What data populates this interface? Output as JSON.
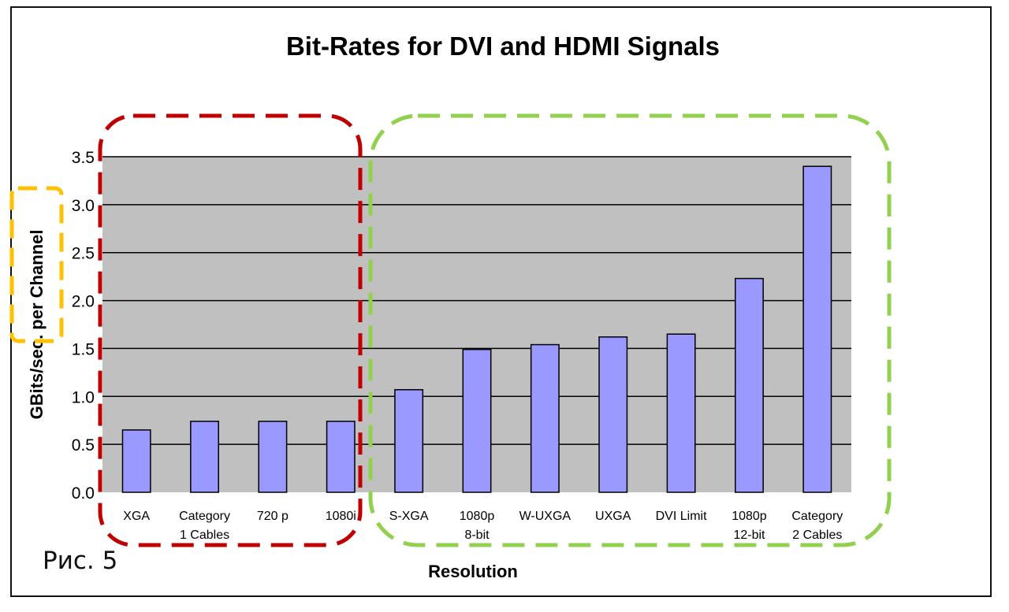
{
  "chart_data": {
    "type": "bar",
    "title": "Bit-Rates for DVI and HDMI Signals",
    "xlabel": "Resolution",
    "ylabel": "GBits/sec. per Channel",
    "ylim": [
      0,
      3.5
    ],
    "y_ticks": [
      "0.0",
      "0.5",
      "1.0",
      "1.5",
      "2.0",
      "2.5",
      "3.0",
      "3.5"
    ],
    "categories": [
      [
        "XGA"
      ],
      [
        "Category",
        "1 Cables"
      ],
      [
        "720 p"
      ],
      [
        "1080i"
      ],
      [
        "S-XGA"
      ],
      [
        "1080p",
        "8-bit"
      ],
      [
        "W-UXGA"
      ],
      [
        "UXGA"
      ],
      [
        "DVI Limit"
      ],
      [
        "1080p",
        "12-bit"
      ],
      [
        "Category",
        "2 Cables"
      ]
    ],
    "values": [
      0.65,
      0.74,
      0.74,
      0.74,
      1.07,
      1.49,
      1.54,
      1.62,
      1.65,
      2.23,
      3.4
    ],
    "grid": true,
    "bar_color": "#9999ff",
    "plot_background": "#c0c0c0",
    "annotations": [
      {
        "kind": "dashed-group",
        "color": "#c00000",
        "covers": [
          "XGA",
          "Category 1 Cables",
          "720 p",
          "1080i"
        ]
      },
      {
        "kind": "dashed-group",
        "color": "#92d050",
        "covers": [
          "S-XGA",
          "1080p 8-bit",
          "W-UXGA",
          "UXGA",
          "DVI Limit",
          "1080p 12-bit",
          "Category 2 Cables"
        ]
      },
      {
        "kind": "dashed-group",
        "color": "#ffc000",
        "covers": [
          "y-axis label"
        ]
      }
    ]
  },
  "caption": "Рис. 5"
}
